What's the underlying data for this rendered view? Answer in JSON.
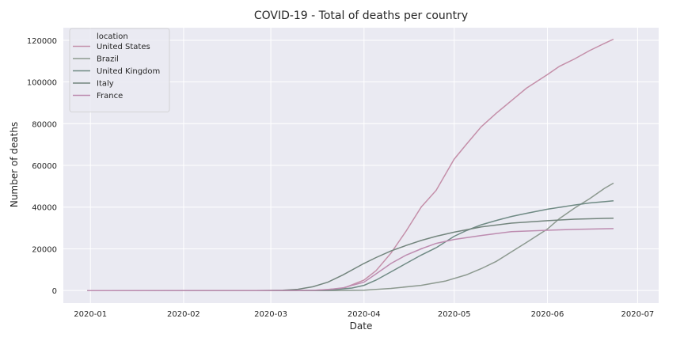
{
  "chart_data": {
    "type": "line",
    "title": "COVID-19 - Total of deaths per country",
    "xlabel": "Date",
    "ylabel": "Number of deaths",
    "xlim": [
      "2019-12-23",
      "2020-07-08"
    ],
    "ylim": [
      -6000,
      126000
    ],
    "x_ticks": [
      "2020-01-01",
      "2020-02-01",
      "2020-03-01",
      "2020-04-01",
      "2020-05-01",
      "2020-06-01",
      "2020-07-01"
    ],
    "x_tick_labels": [
      "2020-01",
      "2020-02",
      "2020-03",
      "2020-04",
      "2020-05",
      "2020-06",
      "2020-07"
    ],
    "y_ticks": [
      0,
      20000,
      40000,
      60000,
      80000,
      100000,
      120000
    ],
    "y_tick_labels": [
      "0",
      "20000",
      "40000",
      "60000",
      "80000",
      "100000",
      "120000"
    ],
    "grid": true,
    "legend": {
      "title": "location",
      "position": "top-left"
    },
    "series": [
      {
        "name": "United States",
        "color": "#c48fa9",
        "points": [
          [
            "2019-12-31",
            0
          ],
          [
            "2020-03-01",
            1
          ],
          [
            "2020-03-15",
            60
          ],
          [
            "2020-03-25",
            1000
          ],
          [
            "2020-04-01",
            5000
          ],
          [
            "2020-04-05",
            9500
          ],
          [
            "2020-04-10",
            18000
          ],
          [
            "2020-04-15",
            28500
          ],
          [
            "2020-04-20",
            40000
          ],
          [
            "2020-04-25",
            48000
          ],
          [
            "2020-05-01",
            63000
          ],
          [
            "2020-05-05",
            70000
          ],
          [
            "2020-05-10",
            78500
          ],
          [
            "2020-05-15",
            85000
          ],
          [
            "2020-05-20",
            91000
          ],
          [
            "2020-05-25",
            97000
          ],
          [
            "2020-06-01",
            103500
          ],
          [
            "2020-06-05",
            107500
          ],
          [
            "2020-06-10",
            111000
          ],
          [
            "2020-06-15",
            115000
          ],
          [
            "2020-06-20",
            118500
          ],
          [
            "2020-06-23",
            120500
          ]
        ]
      },
      {
        "name": "Brazil",
        "color": "#8c998f",
        "points": [
          [
            "2019-12-31",
            0
          ],
          [
            "2020-03-20",
            0
          ],
          [
            "2020-04-01",
            200
          ],
          [
            "2020-04-10",
            1000
          ],
          [
            "2020-04-20",
            2500
          ],
          [
            "2020-04-28",
            4500
          ],
          [
            "2020-05-05",
            7500
          ],
          [
            "2020-05-10",
            10500
          ],
          [
            "2020-05-15",
            14000
          ],
          [
            "2020-05-20",
            18500
          ],
          [
            "2020-05-25",
            23000
          ],
          [
            "2020-06-01",
            29500
          ],
          [
            "2020-06-05",
            34500
          ],
          [
            "2020-06-10",
            39500
          ],
          [
            "2020-06-15",
            44000
          ],
          [
            "2020-06-20",
            49000
          ],
          [
            "2020-06-23",
            51500
          ]
        ]
      },
      {
        "name": "United Kingdom",
        "color": "#6f8a84",
        "points": [
          [
            "2019-12-31",
            0
          ],
          [
            "2020-03-10",
            5
          ],
          [
            "2020-03-20",
            200
          ],
          [
            "2020-03-28",
            1200
          ],
          [
            "2020-04-01",
            2500
          ],
          [
            "2020-04-05",
            5000
          ],
          [
            "2020-04-10",
            9000
          ],
          [
            "2020-04-15",
            13000
          ],
          [
            "2020-04-20",
            17000
          ],
          [
            "2020-04-25",
            20500
          ],
          [
            "2020-05-01",
            26000
          ],
          [
            "2020-05-05",
            28700
          ],
          [
            "2020-05-10",
            31500
          ],
          [
            "2020-05-15",
            33600
          ],
          [
            "2020-05-20",
            35500
          ],
          [
            "2020-05-25",
            37000
          ],
          [
            "2020-06-01",
            39000
          ],
          [
            "2020-06-10",
            41000
          ],
          [
            "2020-06-15",
            42000
          ],
          [
            "2020-06-23",
            43000
          ]
        ]
      },
      {
        "name": "Italy",
        "color": "#73857d",
        "points": [
          [
            "2019-12-31",
            0
          ],
          [
            "2020-02-25",
            5
          ],
          [
            "2020-03-05",
            150
          ],
          [
            "2020-03-10",
            600
          ],
          [
            "2020-03-15",
            1800
          ],
          [
            "2020-03-20",
            4000
          ],
          [
            "2020-03-25",
            7500
          ],
          [
            "2020-04-01",
            13000
          ],
          [
            "2020-04-05",
            15800
          ],
          [
            "2020-04-10",
            19000
          ],
          [
            "2020-04-15",
            21600
          ],
          [
            "2020-04-20",
            24000
          ],
          [
            "2020-04-25",
            26000
          ],
          [
            "2020-05-01",
            28000
          ],
          [
            "2020-05-10",
            30500
          ],
          [
            "2020-05-20",
            32300
          ],
          [
            "2020-06-01",
            33500
          ],
          [
            "2020-06-10",
            34200
          ],
          [
            "2020-06-23",
            34700
          ]
        ]
      },
      {
        "name": "France",
        "color": "#bd8cb0",
        "points": [
          [
            "2019-12-31",
            0
          ],
          [
            "2020-03-10",
            30
          ],
          [
            "2020-03-15",
            120
          ],
          [
            "2020-03-20",
            450
          ],
          [
            "2020-03-25",
            1300
          ],
          [
            "2020-04-01",
            4000
          ],
          [
            "2020-04-05",
            8000
          ],
          [
            "2020-04-10",
            13000
          ],
          [
            "2020-04-15",
            17000
          ],
          [
            "2020-04-20",
            20000
          ],
          [
            "2020-04-25",
            22600
          ],
          [
            "2020-05-01",
            24500
          ],
          [
            "2020-05-10",
            26400
          ],
          [
            "2020-05-20",
            28200
          ],
          [
            "2020-06-01",
            28900
          ],
          [
            "2020-06-10",
            29300
          ],
          [
            "2020-06-23",
            29700
          ]
        ]
      }
    ]
  }
}
